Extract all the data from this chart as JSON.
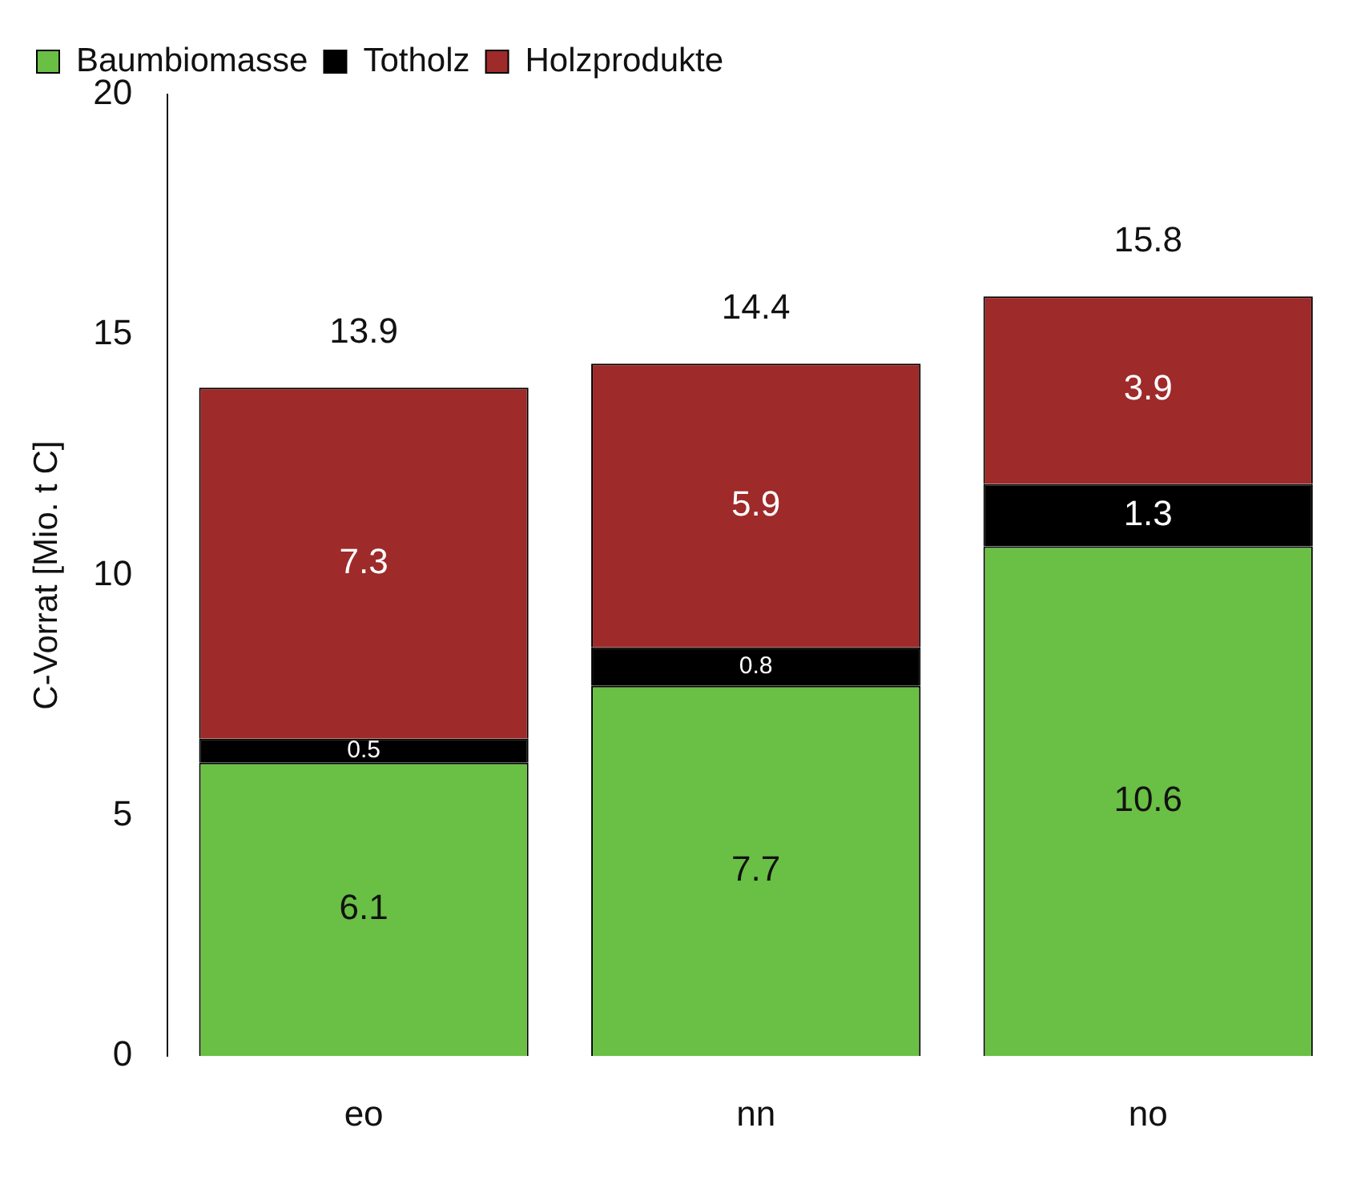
{
  "chart_data": {
    "type": "bar",
    "stacked": true,
    "ylabel": "C-Vorrat [Mio. t C]",
    "categories": [
      "eo",
      "nn",
      "no"
    ],
    "series": [
      {
        "name": "Baumbiomasse",
        "color": "#6abf45",
        "values": [
          6.1,
          7.7,
          10.6
        ]
      },
      {
        "name": "Totholz",
        "color": "#000000",
        "values": [
          0.5,
          0.8,
          1.3
        ]
      },
      {
        "name": "Holzprodukte",
        "color": "#9e2a2a",
        "values": [
          7.3,
          5.9,
          3.9
        ]
      }
    ],
    "ylim": [
      0,
      20
    ],
    "yticks": [
      0,
      5,
      10,
      15,
      20
    ],
    "grid": false,
    "legend": "top left",
    "data_labels": true,
    "totals": [
      "13.9",
      "14.4",
      "15.8"
    ]
  }
}
